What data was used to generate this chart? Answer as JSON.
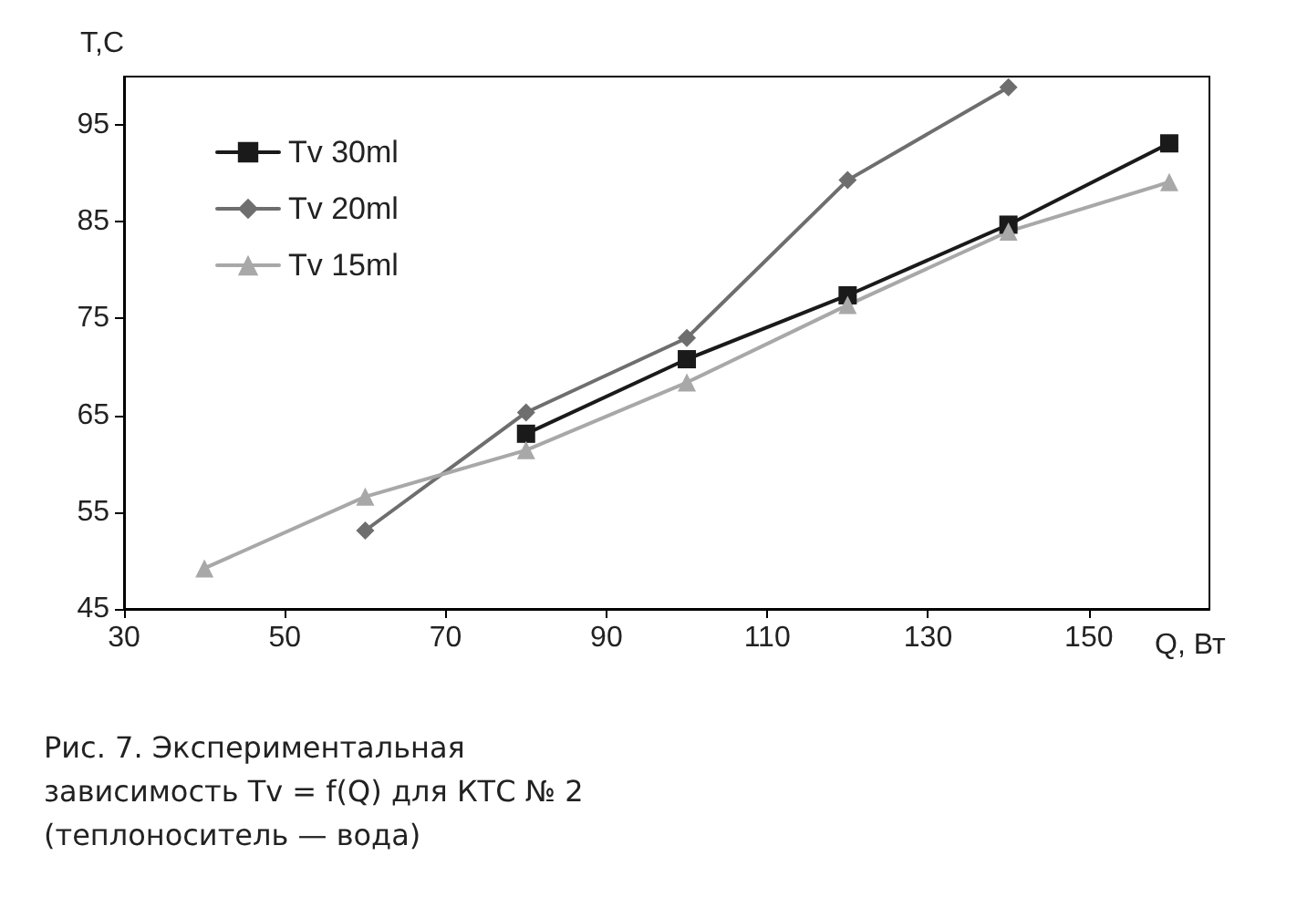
{
  "chart_data": {
    "type": "line",
    "xlabel": "Q, Вт",
    "ylabel": "T,C",
    "x": [
      40,
      60,
      80,
      100,
      120,
      140,
      160
    ],
    "series": [
      {
        "name": "Tv 30ml",
        "color": "#1a1a1a",
        "marker": "square",
        "values": [
          null,
          null,
          63.1,
          70.8,
          77.4,
          84.7,
          93.1
        ]
      },
      {
        "name": "Tv 20ml",
        "color": "#6e6e6e",
        "marker": "diamond",
        "values": [
          null,
          53.1,
          65.3,
          73.0,
          89.3,
          98.9,
          null
        ]
      },
      {
        "name": "Tv 15ml",
        "color": "#a8a8a8",
        "marker": "triangle",
        "values": [
          49.2,
          56.6,
          61.4,
          68.4,
          76.4,
          84.0,
          89.1
        ]
      }
    ],
    "xlim": [
      30,
      165
    ],
    "xticks": [
      30,
      50,
      70,
      90,
      110,
      130,
      150
    ],
    "ylim": [
      45,
      100
    ],
    "yticks": [
      45,
      55,
      65,
      75,
      85,
      95
    ],
    "grid": false,
    "legend": "top left",
    "annotations": [
      "Рис. 7. Экспериментальная зависимость Tv = f(Q) для КТС № 2 (теплоноситель — вода)"
    ]
  }
}
